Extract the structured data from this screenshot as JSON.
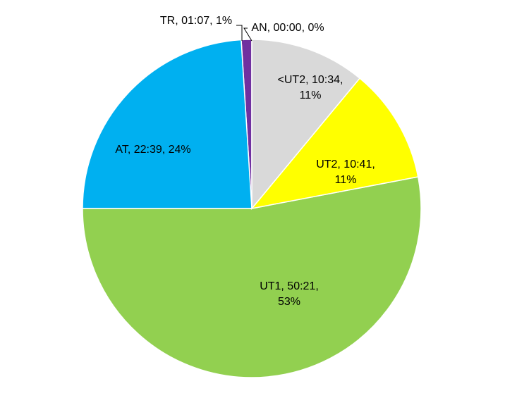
{
  "chart_data": {
    "type": "pie",
    "categories": [
      "<UT2",
      "UT2",
      "UT1",
      "AT",
      "TR",
      "AN"
    ],
    "values": [
      11,
      11,
      53,
      24,
      1,
      0
    ],
    "value_labels": [
      "<UT2, 10:34, 11%",
      "UT2, 10:41, 11%",
      "UT1, 50:21, 53%",
      "AT, 22:39, 24%",
      "TR, 01:07, 1%",
      "AN, 00:00, 0%"
    ],
    "colors": [
      "#d9d9d9",
      "#ffff00",
      "#92d050",
      "#00b0f0",
      "#7030a0",
      "#c00000"
    ]
  }
}
